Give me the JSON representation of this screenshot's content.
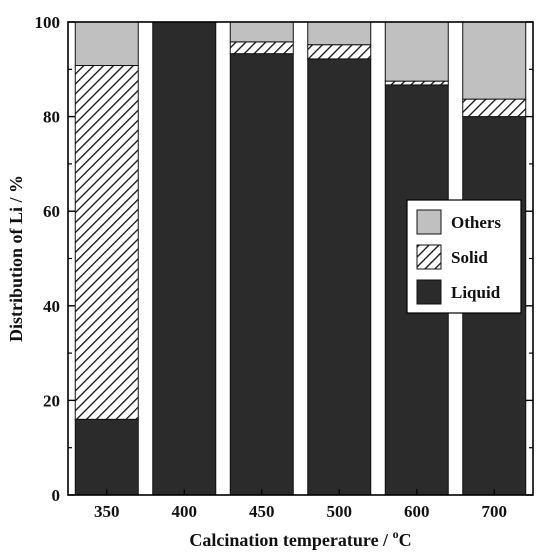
{
  "chart_data": {
    "type": "bar",
    "stacked": true,
    "categories": [
      "350",
      "400",
      "450",
      "500",
      "600",
      "700"
    ],
    "series": [
      {
        "name": "Liquid",
        "values": [
          16.0,
          100.0,
          93.3,
          92.2,
          86.7,
          80.0
        ],
        "color": "#2b2b2b",
        "pattern": "solid"
      },
      {
        "name": "Solid",
        "values": [
          74.8,
          0.0,
          2.5,
          3.0,
          0.8,
          3.7
        ],
        "color": "#ffffff",
        "pattern": "hatch"
      },
      {
        "name": "Others",
        "values": [
          9.2,
          0.0,
          4.2,
          4.8,
          12.5,
          16.3
        ],
        "color": "#c0c0c0",
        "pattern": "solid"
      }
    ],
    "xlabel": "Calcination temperature / ",
    "xlabel_unit": "C",
    "xlabel_unit_superscript": "o",
    "ylabel": "Distribution of Li / %",
    "ylim": [
      0,
      100
    ],
    "yticks": [
      0,
      20,
      40,
      60,
      80,
      100
    ],
    "legend": {
      "placement": "right",
      "order": [
        "Others",
        "Solid",
        "Liquid"
      ]
    },
    "grid": false
  }
}
